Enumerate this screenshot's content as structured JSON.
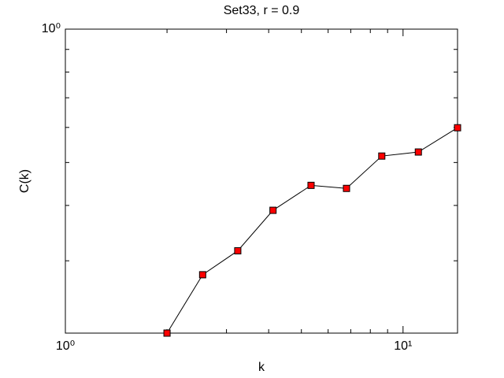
{
  "chart_data": {
    "type": "line",
    "title": "Set33, r = 0.9",
    "x_label": "k",
    "y_label": "C(k)",
    "x": [
      2.0,
      2.55,
      3.24,
      4.12,
      5.34,
      6.8,
      8.65,
      11.1,
      14.5
    ],
    "series": [
      {
        "color": "#ff0000",
        "values": [
          0.206,
          0.279,
          0.316,
          0.39,
          0.444,
          0.437,
          0.517,
          0.528,
          0.599
        ]
      }
    ],
    "xlim": [
      1,
      14.5
    ],
    "ylim": [
      0.206,
      1
    ],
    "xticks": [
      {
        "value": 1,
        "label": "10⁰"
      },
      {
        "value": 10,
        "label": "10¹"
      }
    ],
    "yticks": [
      {
        "value": 1,
        "label": "10⁰"
      }
    ],
    "xscale": "log",
    "yscale": "log",
    "grid": false
  }
}
